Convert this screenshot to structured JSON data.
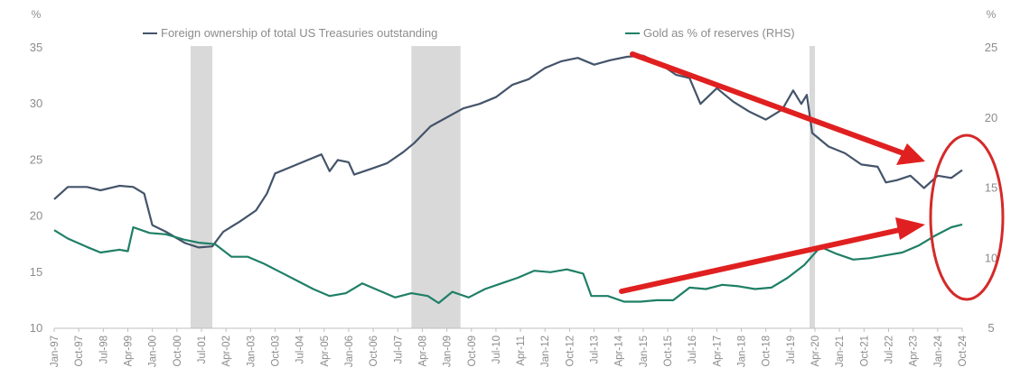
{
  "chart_data": {
    "type": "line",
    "left_unit": "%",
    "right_unit": "%",
    "y_left_range": [
      10,
      35
    ],
    "y_right_range": [
      5,
      25
    ],
    "y_left_ticks": [
      "10",
      "15",
      "20",
      "25",
      "30",
      "35"
    ],
    "y_right_ticks": [
      "5",
      "10",
      "15",
      "20",
      "25"
    ],
    "x_ticks": [
      "Jan-97",
      "Oct-97",
      "Jul-98",
      "Apr-99",
      "Jan-00",
      "Oct-00",
      "Jul-01",
      "Apr-02",
      "Jan-03",
      "Oct-03",
      "Jul-04",
      "Apr-05",
      "Jan-06",
      "Oct-06",
      "Jul-07",
      "Apr-08",
      "Jan-09",
      "Oct-09",
      "Jul-10",
      "Apr-11",
      "Jan-12",
      "Oct-12",
      "Jul-13",
      "Apr-14",
      "Jan-15",
      "Oct-15",
      "Jul-16",
      "Apr-17",
      "Jan-18",
      "Oct-18",
      "Jul-19",
      "Apr-20",
      "Jan-21",
      "Oct-21",
      "Jul-22",
      "Apr-23",
      "Jan-24",
      "Oct-24"
    ],
    "grid": false,
    "legend_position": "top",
    "shaded_periods": [
      {
        "start": "2001-03",
        "end": "2001-11"
      },
      {
        "start": "2007-12",
        "end": "2009-06"
      },
      {
        "start": "2020-02",
        "end": "2020-04"
      }
    ],
    "series": [
      {
        "name": "Foreign ownership of total US Treasuries outstanding",
        "axis": "left",
        "color": "#44546a",
        "points": [
          [
            "1997-01",
            21.5
          ],
          [
            "1997-06",
            22.6
          ],
          [
            "1998-01",
            22.6
          ],
          [
            "1998-06",
            22.3
          ],
          [
            "1999-01",
            22.7
          ],
          [
            "1999-06",
            22.6
          ],
          [
            "1999-10",
            22.0
          ],
          [
            "2000-01",
            19.2
          ],
          [
            "2000-06",
            18.6
          ],
          [
            "2001-01",
            17.6
          ],
          [
            "2001-06",
            17.2
          ],
          [
            "2001-11",
            17.3
          ],
          [
            "2002-03",
            18.6
          ],
          [
            "2002-09",
            19.5
          ],
          [
            "2003-03",
            20.5
          ],
          [
            "2003-07",
            22.0
          ],
          [
            "2003-10",
            23.8
          ],
          [
            "2004-04",
            24.4
          ],
          [
            "2004-09",
            24.9
          ],
          [
            "2005-03",
            25.5
          ],
          [
            "2005-06",
            24.0
          ],
          [
            "2005-09",
            25.0
          ],
          [
            "2006-01",
            24.8
          ],
          [
            "2006-03",
            23.7
          ],
          [
            "2006-09",
            24.2
          ],
          [
            "2007-03",
            24.7
          ],
          [
            "2007-09",
            25.7
          ],
          [
            "2008-01",
            26.5
          ],
          [
            "2008-07",
            28.0
          ],
          [
            "2009-01",
            28.8
          ],
          [
            "2009-07",
            29.6
          ],
          [
            "2010-01",
            30.0
          ],
          [
            "2010-07",
            30.6
          ],
          [
            "2011-01",
            31.7
          ],
          [
            "2011-07",
            32.2
          ],
          [
            "2012-01",
            33.2
          ],
          [
            "2012-07",
            33.8
          ],
          [
            "2013-01",
            34.1
          ],
          [
            "2013-07",
            33.5
          ],
          [
            "2014-01",
            33.9
          ],
          [
            "2014-07",
            34.2
          ],
          [
            "2015-01",
            34.3
          ],
          [
            "2015-07",
            33.6
          ],
          [
            "2016-01",
            32.6
          ],
          [
            "2016-06",
            32.3
          ],
          [
            "2016-10",
            30.0
          ],
          [
            "2017-04",
            31.4
          ],
          [
            "2017-10",
            30.2
          ],
          [
            "2018-04",
            29.3
          ],
          [
            "2018-10",
            28.6
          ],
          [
            "2019-04",
            29.5
          ],
          [
            "2019-08",
            31.2
          ],
          [
            "2019-11",
            30.0
          ],
          [
            "2020-01",
            30.8
          ],
          [
            "2020-03",
            27.4
          ],
          [
            "2020-09",
            26.2
          ],
          [
            "2021-03",
            25.6
          ],
          [
            "2021-09",
            24.6
          ],
          [
            "2022-03",
            24.4
          ],
          [
            "2022-06",
            23.0
          ],
          [
            "2022-10",
            23.2
          ],
          [
            "2023-03",
            23.6
          ],
          [
            "2023-08",
            22.5
          ],
          [
            "2024-01",
            23.6
          ],
          [
            "2024-06",
            23.4
          ],
          [
            "2024-10",
            24.1
          ]
        ]
      },
      {
        "name": "Gold as % of  reserves (RHS)",
        "axis": "right",
        "color": "#1f7f66",
        "points": [
          [
            "1997-01",
            12.0
          ],
          [
            "1997-06",
            11.4
          ],
          [
            "1998-01",
            10.8
          ],
          [
            "1998-06",
            10.4
          ],
          [
            "1999-01",
            10.6
          ],
          [
            "1999-04",
            10.5
          ],
          [
            "1999-06",
            12.2
          ],
          [
            "1999-12",
            11.8
          ],
          [
            "2000-06",
            11.7
          ],
          [
            "2001-01",
            11.3
          ],
          [
            "2001-06",
            11.1
          ],
          [
            "2001-12",
            11.0
          ],
          [
            "2002-06",
            10.1
          ],
          [
            "2002-12",
            10.1
          ],
          [
            "2003-06",
            9.6
          ],
          [
            "2003-12",
            9.0
          ],
          [
            "2004-06",
            8.4
          ],
          [
            "2004-12",
            7.8
          ],
          [
            "2005-06",
            7.3
          ],
          [
            "2005-12",
            7.5
          ],
          [
            "2006-06",
            8.2
          ],
          [
            "2006-12",
            7.7
          ],
          [
            "2007-06",
            7.2
          ],
          [
            "2007-12",
            7.5
          ],
          [
            "2008-06",
            7.3
          ],
          [
            "2008-10",
            6.8
          ],
          [
            "2009-03",
            7.6
          ],
          [
            "2009-09",
            7.2
          ],
          [
            "2010-03",
            7.8
          ],
          [
            "2010-09",
            8.2
          ],
          [
            "2011-03",
            8.6
          ],
          [
            "2011-09",
            9.1
          ],
          [
            "2012-03",
            9.0
          ],
          [
            "2012-09",
            9.2
          ],
          [
            "2013-03",
            8.9
          ],
          [
            "2013-06",
            7.3
          ],
          [
            "2013-12",
            7.3
          ],
          [
            "2014-06",
            6.9
          ],
          [
            "2014-12",
            6.9
          ],
          [
            "2015-06",
            7.0
          ],
          [
            "2015-12",
            7.0
          ],
          [
            "2016-06",
            7.9
          ],
          [
            "2016-12",
            7.8
          ],
          [
            "2017-06",
            8.1
          ],
          [
            "2017-12",
            8.0
          ],
          [
            "2018-06",
            7.8
          ],
          [
            "2018-12",
            7.9
          ],
          [
            "2019-06",
            8.6
          ],
          [
            "2019-12",
            9.5
          ],
          [
            "2020-06",
            10.8
          ],
          [
            "2020-12",
            10.3
          ],
          [
            "2021-06",
            9.9
          ],
          [
            "2021-12",
            10.0
          ],
          [
            "2022-06",
            10.2
          ],
          [
            "2022-12",
            10.4
          ],
          [
            "2023-06",
            10.9
          ],
          [
            "2023-12",
            11.6
          ],
          [
            "2024-06",
            12.2
          ],
          [
            "2024-10",
            12.4
          ]
        ]
      }
    ]
  }
}
